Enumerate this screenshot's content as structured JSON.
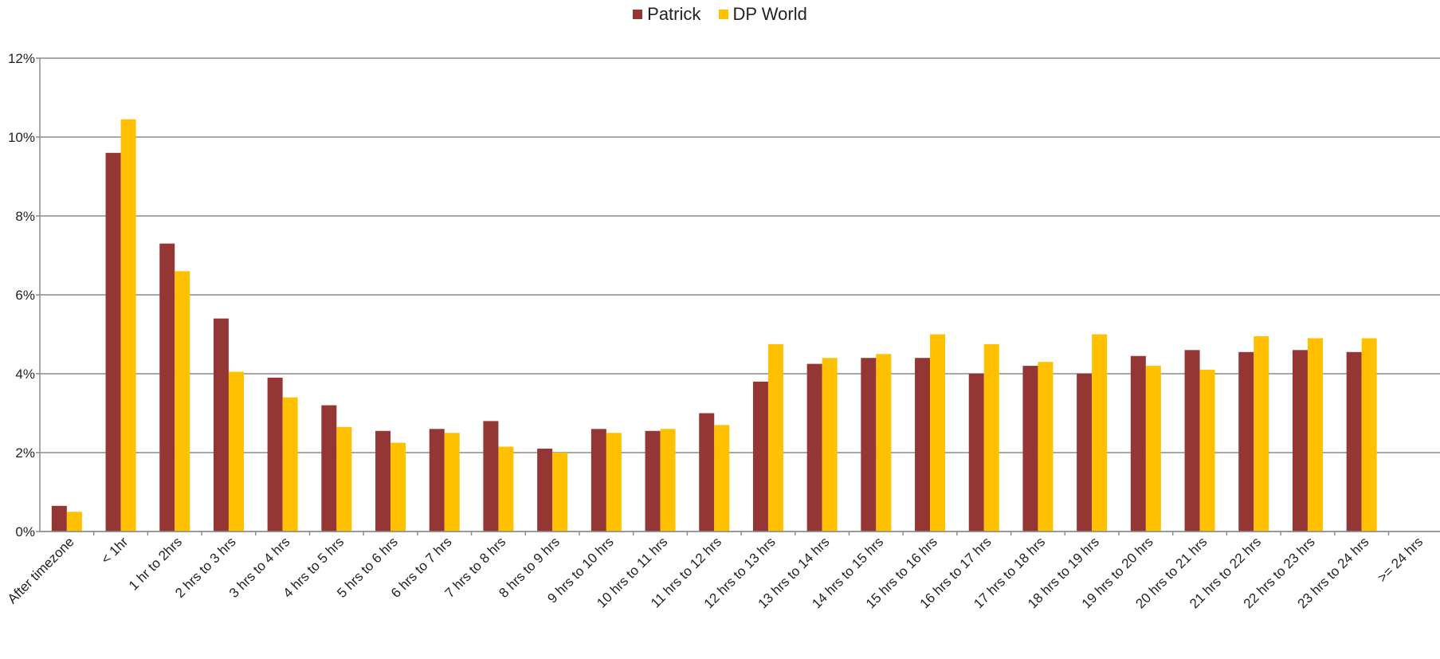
{
  "chart_data": {
    "type": "bar",
    "ylim": [
      0,
      12
    ],
    "yticks": [
      "0%",
      "2%",
      "4%",
      "6%",
      "8%",
      "10%",
      "12%"
    ],
    "ytick_values": [
      0,
      2,
      4,
      6,
      8,
      10,
      12
    ],
    "grid": true,
    "legend_position": "top-center",
    "categories": [
      "After timezone",
      "< 1hr",
      "1 hr to 2hrs",
      "2 hrs to 3 hrs",
      "3 hrs to 4 hrs",
      "4 hrs to 5 hrs",
      "5 hrs to 6 hrs",
      "6 hrs to 7 hrs",
      "7 hrs to 8 hrs",
      "8 hrs to 9 hrs",
      "9 hrs to 10 hrs",
      "10 hrs to 11 hrs",
      "11 hrs to 12 hrs",
      "12 hrs to 13 hrs",
      "13 hrs to 14 hrs",
      "14 hrs to 15 hrs",
      "15 hrs to 16 hrs",
      "16 hrs to 17 hrs",
      "17 hrs to 18 hrs",
      "18 hrs to 19 hrs",
      "19 hrs to 20 hrs",
      "20 hrs to 21 hrs",
      "21 hrs to 22 hrs",
      "22 hrs to 23 hrs",
      "23 hrs to 24 hrs",
      ">= 24 hrs"
    ],
    "series": [
      {
        "name": "Patrick",
        "color": "#943634",
        "values": [
          0.65,
          9.6,
          7.3,
          5.4,
          3.9,
          3.2,
          2.55,
          2.6,
          2.8,
          2.1,
          2.6,
          2.55,
          3.0,
          3.8,
          4.25,
          4.4,
          4.4,
          4.0,
          4.2,
          4.0,
          4.45,
          4.6,
          4.55,
          4.6,
          4.55,
          0
        ]
      },
      {
        "name": "DP World",
        "color": "#FFC000",
        "values": [
          0.5,
          10.45,
          6.6,
          4.05,
          3.4,
          2.65,
          2.25,
          2.5,
          2.15,
          2.0,
          2.5,
          2.6,
          2.7,
          4.75,
          4.4,
          4.5,
          5.0,
          4.75,
          4.3,
          5.0,
          4.2,
          4.1,
          4.95,
          4.9,
          4.9,
          0
        ]
      }
    ]
  }
}
